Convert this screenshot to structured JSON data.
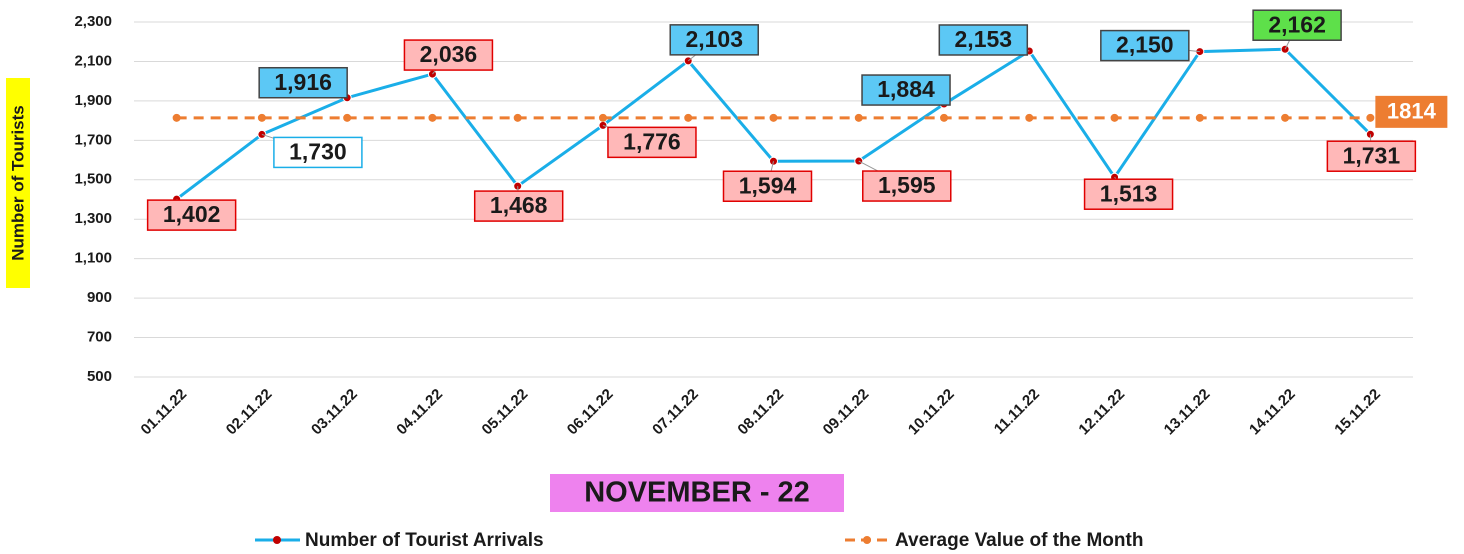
{
  "chart_data": {
    "type": "line",
    "x_label": "NOVEMBER - 22",
    "y_label": "Number of Tourists",
    "categories": [
      "01.11.22",
      "02.11.22",
      "03.11.22",
      "04.11.22",
      "05.11.22",
      "06.11.22",
      "07.11.22",
      "08.11.22",
      "09.11.22",
      "10.11.22",
      "11.11.22",
      "12.11.22",
      "13.11.22",
      "14.11.22",
      "15.11.22"
    ],
    "series": [
      {
        "name": "Number of Tourist Arrivals",
        "color": "#1aaee8",
        "marker_color": "#c00000",
        "values": [
          1402,
          1730,
          1916,
          2036,
          1468,
          1776,
          2103,
          1594,
          1595,
          1884,
          2153,
          1513,
          2150,
          2162,
          1731
        ],
        "value_labels": [
          "1,402",
          "1,730",
          "1,916",
          "2,036",
          "1,468",
          "1,776",
          "2,103",
          "1,594",
          "1,595",
          "1,884",
          "2,153",
          "1,513",
          "2,150",
          "2,162",
          "1,731"
        ],
        "label_colors": [
          "#ffb8b8",
          "#ffffff",
          "#5cc8f5",
          "#ffb8b8",
          "#ffb8b8",
          "#ffb8b8",
          "#5cc8f5",
          "#ffb8b8",
          "#ffb8b8",
          "#5cc8f5",
          "#5cc8f5",
          "#ffb8b8",
          "#5cc8f5",
          "#5ee04a",
          "#ffb8b8"
        ],
        "label_borders": [
          "#e00000",
          "#1aaee8",
          "#444444",
          "#e00000",
          "#e00000",
          "#e00000",
          "#444444",
          "#e00000",
          "#e00000",
          "#444444",
          "#444444",
          "#e00000",
          "#444444",
          "#444444",
          "#e00000"
        ]
      },
      {
        "name": "Average Value of the Month",
        "color": "#ed7d31",
        "dashed": true,
        "values": [
          1814,
          1814,
          1814,
          1814,
          1814,
          1814,
          1814,
          1814,
          1814,
          1814,
          1814,
          1814,
          1814,
          1814,
          1814
        ]
      }
    ],
    "ylim": [
      500,
      2300
    ],
    "yticks": [
      500,
      700,
      900,
      {
        "value": 1100,
        "label": "1,100"
      },
      {
        "value": 1300,
        "label": "1,300"
      },
      {
        "value": 1500,
        "label": "1,500"
      },
      {
        "value": 1700,
        "label": "1,700"
      },
      {
        "value": 1900,
        "label": "1,900"
      },
      {
        "value": 2100,
        "label": "2,100"
      },
      {
        "value": 2300,
        "label": "2,300"
      }
    ],
    "grid": true
  }
}
